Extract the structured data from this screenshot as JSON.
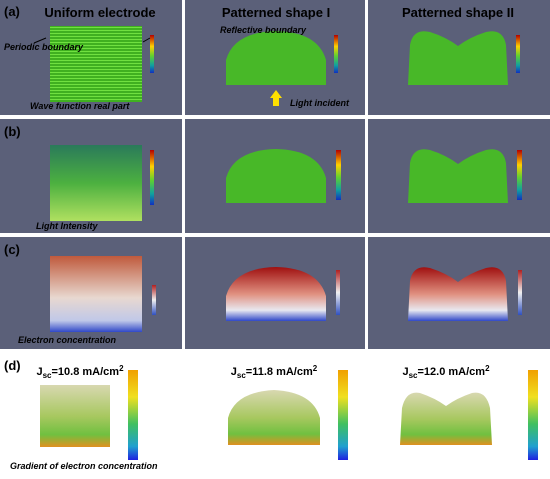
{
  "row_labels": [
    "(a)",
    "(b)",
    "(c)",
    "(d)"
  ],
  "column_titles": [
    "Uniform electrode",
    "Patterned shape I",
    "Patterned shape II"
  ],
  "annotations": {
    "periodic": "Periodic boundary",
    "reflective": "Reflective boundary",
    "wave": "Wave function real part",
    "light_incident": "Light incident",
    "intensity": "Light Intensity",
    "electron": "Electron concentration",
    "gradient": "Gradient of electron concentration"
  },
  "jsc": [
    {
      "symbol": "J",
      "sub": "sc",
      "text": "=10.8 mA/cm",
      "sup": "2"
    },
    {
      "symbol": "J",
      "sub": "sc",
      "text": "=11.8 mA/cm",
      "sup": "2"
    },
    {
      "symbol": "J",
      "sub": "sc",
      "text": "=12.0 mA/cm",
      "sup": "2"
    }
  ]
}
